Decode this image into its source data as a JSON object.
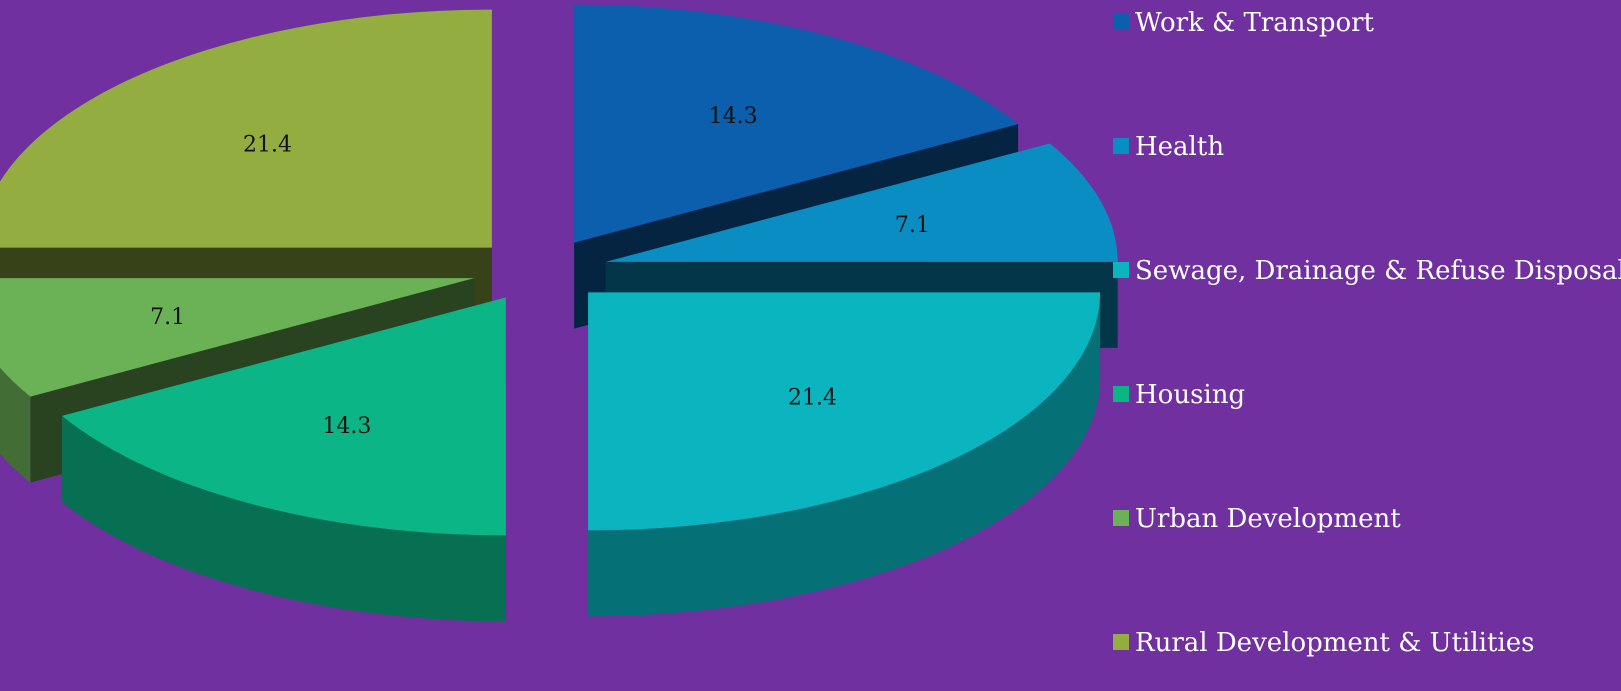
{
  "chart_data": {
    "type": "pie",
    "variant": "3d-exploded",
    "background": "#7030a0",
    "title": "",
    "legend_position": "right",
    "slices": [
      {
        "label": "Work & Transport",
        "value": 14.3,
        "color": "#0b5fad"
      },
      {
        "label": "Health",
        "value": 7.1,
        "color": "#0a8dc2"
      },
      {
        "label": "Sewage, Drainage & Refuse Disposal",
        "value": 21.4,
        "color": "#0ab5c0"
      },
      {
        "label": "Housing",
        "value": 14.3,
        "color": "#0cb585"
      },
      {
        "label": "Urban Development",
        "value": 7.1,
        "color": "#6bb156"
      },
      {
        "label": "Rural Development & Utilities",
        "value": 21.4,
        "color": "#94ad40"
      }
    ]
  }
}
